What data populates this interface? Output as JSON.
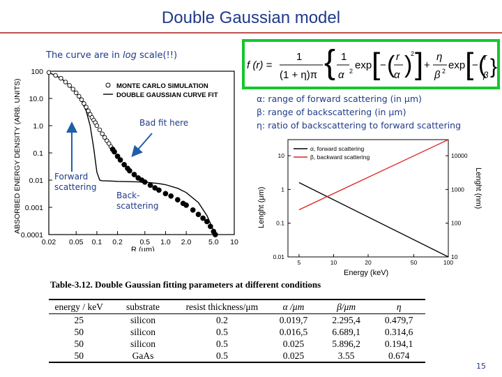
{
  "slide": {
    "title": "Double Gaussian model",
    "page_number": "15",
    "log_note_prefix": "The curve are in ",
    "log_note_em": "log",
    "log_note_suffix": " scale(!!)",
    "annotations": {
      "bad_fit": "Bad fit here",
      "forward_l1": "Forward",
      "forward_l2": "scattering",
      "back_l1": "Back-",
      "back_l2": "scattering"
    },
    "definitions": [
      "α: range of forward scattering (in μm)",
      "β: range of backscattering (in μm)",
      "η: ratio of backscattering to forward scattering"
    ],
    "formula": {
      "lhs": "f (r) =",
      "num1": "1",
      "den1": "(1 + η)π",
      "num2": "1",
      "den2": "α",
      "exp": "exp",
      "r": "r",
      "eta": "η",
      "beta": "β",
      "sq": "2"
    },
    "colors": {
      "title": "#1f3a8a",
      "rule": "#c0504d",
      "formula_border": "#15c72d",
      "arrow": "#1f5fa8",
      "alpha_line": "#000000",
      "beta_line": "#e02020"
    }
  },
  "chart_data": [
    {
      "type": "scatter",
      "title": "",
      "xlabel": "R (μm)",
      "ylabel": "ABSORBED ENERGY DENSITY (ARB. UNITS)",
      "x_scale": "log",
      "y_scale": "log",
      "xlim": [
        0.02,
        10
      ],
      "ylim": [
        0.0001,
        100
      ],
      "x_ticks": [
        "0.02",
        "0.05",
        "0.1",
        "0.2",
        "0.5",
        "1.0",
        "2.0",
        "5.0",
        "10"
      ],
      "y_ticks": [
        "100",
        "10.0",
        "1.0",
        "0.1",
        "0.01",
        "0.001",
        "0.0001"
      ],
      "legend": [
        "MONTE CARLO SIMULATION",
        "DOUBLE GAUSSIAN CURVE FIT"
      ],
      "legend_position": "top-right",
      "series": [
        {
          "name": "MONTE CARLO SIMULATION",
          "x": [
            0.02,
            0.025,
            0.03,
            0.035,
            0.04,
            0.045,
            0.05,
            0.055,
            0.06,
            0.065,
            0.07,
            0.075,
            0.08,
            0.085,
            0.09,
            0.095,
            0.1,
            0.11,
            0.12,
            0.13,
            0.14,
            0.15,
            0.16,
            0.17,
            0.18,
            0.2,
            0.22,
            0.25,
            0.28,
            0.3,
            0.35,
            0.4,
            0.45,
            0.5,
            0.6,
            0.7,
            0.8,
            1.0,
            1.2,
            1.5,
            1.8,
            2.0,
            2.5,
            3.0,
            3.5,
            4.0,
            4.5,
            5.0,
            5.3
          ],
          "y": [
            90,
            70,
            55,
            40,
            30,
            22,
            16,
            12,
            9,
            6.5,
            4.8,
            3.5,
            2.6,
            2.0,
            1.6,
            1.3,
            1.0,
            0.7,
            0.5,
            0.37,
            0.28,
            0.22,
            0.17,
            0.135,
            0.11,
            0.075,
            0.055,
            0.037,
            0.027,
            0.022,
            0.016,
            0.012,
            0.01,
            0.0085,
            0.0065,
            0.0052,
            0.0043,
            0.0032,
            0.0026,
            0.0019,
            0.0014,
            0.0012,
            0.0008,
            0.00055,
            0.0004,
            0.0003,
            0.0002,
            0.00013,
            0.0001
          ]
        },
        {
          "name": "DOUBLE GAUSSIAN CURVE FIT",
          "x": [
            0.02,
            0.03,
            0.04,
            0.05,
            0.06,
            0.07,
            0.08,
            0.09,
            0.1,
            0.11,
            0.12,
            0.15,
            0.2,
            0.3,
            0.5,
            0.8,
            1.0,
            1.5,
            2.0,
            3.0,
            4.0,
            5.0,
            5.3
          ],
          "y": [
            90,
            55,
            30,
            16,
            8,
            3.5,
            1.0,
            0.15,
            0.02,
            0.01,
            0.0095,
            0.0093,
            0.009,
            0.0088,
            0.0085,
            0.0075,
            0.0068,
            0.005,
            0.0035,
            0.0015,
            0.0005,
            0.00014,
            0.0001
          ]
        }
      ]
    },
    {
      "type": "line",
      "title": "",
      "xlabel": "Energy (keV)",
      "ylabel": "Lenght (μm)",
      "ylabel_right": "Lenght (nm)",
      "x_scale": "log",
      "y_scale": "log",
      "xlim": [
        4,
        100
      ],
      "ylim": [
        0.01,
        30
      ],
      "x_ticks": [
        "5",
        "10",
        "20",
        "50",
        "100"
      ],
      "y_ticks": [
        "10",
        "1",
        "0.1",
        "0.01"
      ],
      "y_ticks_right": [
        "10000",
        "1000",
        "100",
        "10"
      ],
      "legend": [
        "α, forward scattering",
        "β, backward scattering"
      ],
      "legend_position": "top-left",
      "series": [
        {
          "name": "α, forward scattering",
          "x": [
            5,
            100
          ],
          "y": [
            1.6,
            0.01
          ]
        },
        {
          "name": "β, backward scattering",
          "x": [
            5,
            100
          ],
          "y": [
            0.25,
            30
          ]
        }
      ]
    }
  ],
  "table": {
    "title": "Table-3.12. Double Gaussian fitting parameters at different conditions",
    "headers": [
      "energy / keV",
      "substrate",
      "resist thickness/μm",
      "α /μm",
      "β/μm",
      "η"
    ],
    "rows": [
      [
        "25",
        "silicon",
        "0.2",
        "0.019,7",
        "2.295,4",
        "0.479,7"
      ],
      [
        "50",
        "silicon",
        "0.5",
        "0.016,5",
        "6.689,1",
        "0.314,6"
      ],
      [
        "50",
        "silicon",
        "0.5",
        "0.025",
        "5.896,2",
        "0.194,1"
      ],
      [
        "50",
        "GaAs",
        "0.5",
        "0.025",
        "3.55",
        "0.674"
      ]
    ]
  }
}
